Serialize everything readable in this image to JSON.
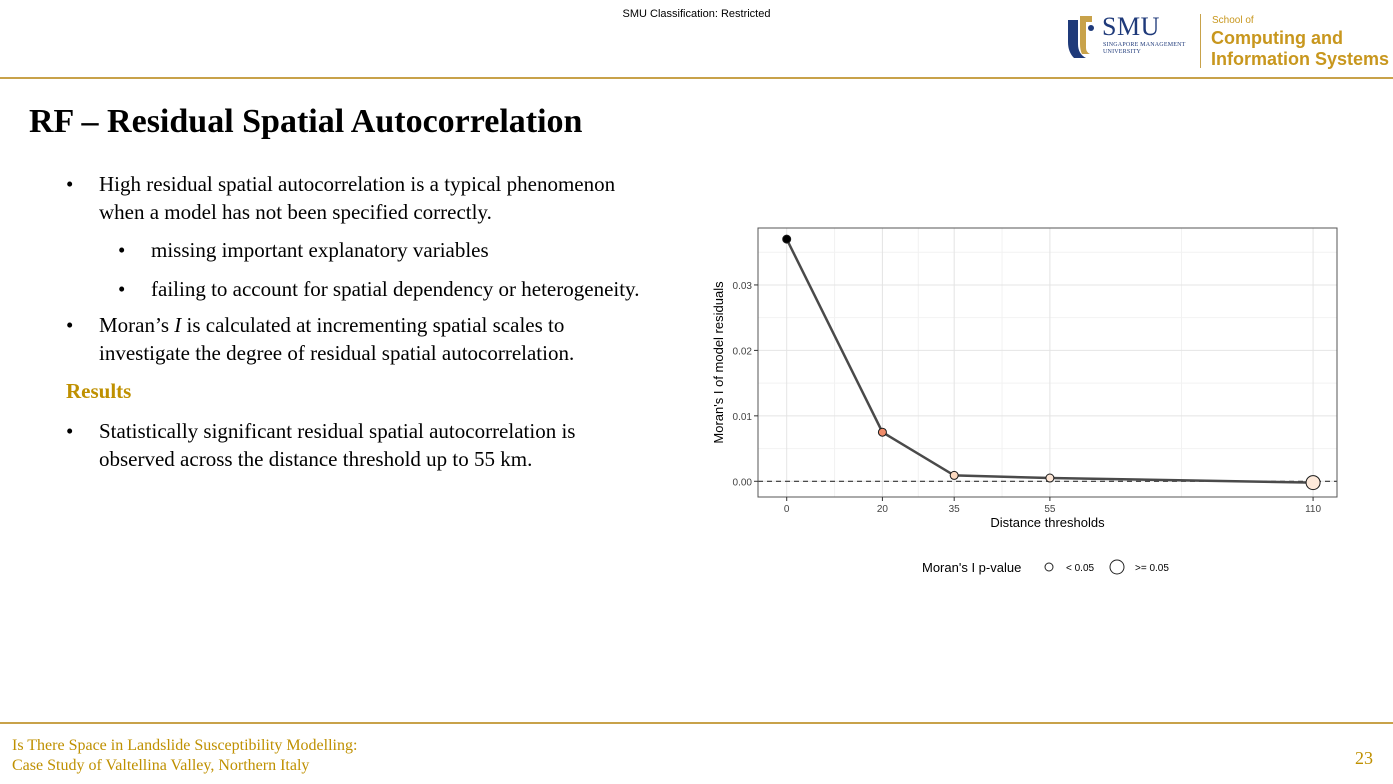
{
  "header": {
    "classification": "SMU Classification: Restricted",
    "logo": {
      "smu": "SMU",
      "smu_sub_line1": "SINGAPORE MANAGEMENT",
      "smu_sub_line2": "UNIVERSITY",
      "school_of": "School of",
      "school_line1": "Computing and",
      "school_line2": "Information Systems"
    }
  },
  "slide": {
    "title": "RF – Residual Spatial Autocorrelation",
    "bullet1": {
      "dot": "•",
      "text": "High residual spatial autocorrelation is a typical phenomenon when a model has not been specified correctly."
    },
    "sub_bullets": [
      {
        "dot": "•",
        "text": "missing important explanatory variables"
      },
      {
        "dot": "•",
        "text": "failing to account for spatial dependency or heterogeneity."
      }
    ],
    "bullet2": {
      "dot": "•",
      "pre": "Moran’s ",
      "italic": "I",
      "post": " is calculated at incrementing spatial scales to investigate the degree of residual spatial autocorrelation."
    },
    "results_heading": "Results",
    "bullet3": {
      "dot": "•",
      "text": "Statistically significant residual spatial autocorrelation is observed across the distance threshold up to 55 km."
    }
  },
  "chart_data": {
    "type": "line",
    "xlabel": "Distance thresholds",
    "ylabel": "Moran's I of model residuals",
    "x_ticks": [
      0,
      20,
      35,
      55,
      110
    ],
    "y_ticks": [
      "0.00",
      "0.01",
      "0.02",
      "0.03"
    ],
    "xlim": [
      -6,
      115
    ],
    "ylim": [
      -0.0024,
      0.0387
    ],
    "grid": true,
    "reference_line_y": 0,
    "legend": {
      "title": "Moran's I p-value",
      "placement": "bottom",
      "items": [
        {
          "label": "< 0.05",
          "marker": "small-circle"
        },
        {
          "label": ">= 0.05",
          "marker": "large-circle"
        }
      ]
    },
    "points": [
      {
        "x": 0,
        "y": 0.037,
        "p": "< 0.05",
        "color": "#000000"
      },
      {
        "x": 20,
        "y": 0.0075,
        "p": "< 0.05",
        "color": "#f08c6a"
      },
      {
        "x": 35,
        "y": 0.0009,
        "p": "< 0.05",
        "color": "#fbd9c0"
      },
      {
        "x": 55,
        "y": 0.0005,
        "p": "< 0.05",
        "color": "#fde6d6"
      },
      {
        "x": 110,
        "y": -0.0002,
        "p": ">= 0.05",
        "color": "#fde9da"
      }
    ]
  },
  "footer": {
    "title_line1": "Is There Space in Landslide Susceptibility Modelling:",
    "title_line2": "Case Study of Valtellina Valley, Northern Italy",
    "page_number": "23"
  },
  "colors": {
    "gold": "#c8a24a",
    "gold_text": "#bf9000",
    "smu_blue": "#1f3a7a"
  }
}
